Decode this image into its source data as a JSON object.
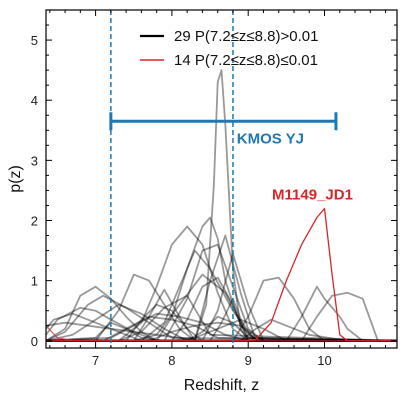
{
  "chart_data": {
    "type": "line",
    "xlabel": "Redshift, z",
    "ylabel": "p(z)",
    "xlim": [
      6.35,
      10.95
    ],
    "ylim": [
      -0.12,
      5.5
    ],
    "xticks": [
      7,
      8,
      9,
      10
    ],
    "yticks": [
      0,
      1,
      2,
      3,
      4,
      5
    ],
    "grid": false,
    "legend_position": "top-right",
    "legend": [
      {
        "label": "29 P(7.2≤z≤8.8)>0.01",
        "color": "#000000"
      },
      {
        "label": "14 P(7.2≤z≤8.8)≤0.01",
        "color": "#d62728"
      }
    ],
    "vlines": [
      {
        "x": 7.2,
        "color": "#1f77b4",
        "style": "dashed"
      },
      {
        "x": 8.8,
        "color": "#1f77b4",
        "style": "dashed"
      }
    ],
    "range_bar": {
      "label": "KMOS YJ",
      "x_start": 7.2,
      "x_end": 10.15,
      "y": 3.65,
      "color": "#1f77b4"
    },
    "annotation": {
      "label": "M1149_JD1",
      "x": 10.0,
      "y": 2.35,
      "color": "#d62728"
    },
    "series": [
      {
        "color": "#d62728",
        "alpha": 1.0,
        "x": [
          6.35,
          8.95,
          9.1,
          9.3,
          9.5,
          9.7,
          9.9,
          10.0,
          10.1,
          10.2,
          10.3,
          10.95
        ],
        "y": [
          0.0,
          0.0,
          0.02,
          0.3,
          1.0,
          1.6,
          2.05,
          2.2,
          1.1,
          0.1,
          0.0,
          0.0
        ]
      },
      {
        "color": "#000000",
        "alpha": 0.4,
        "x": [
          6.35,
          8.3,
          8.45,
          8.55,
          8.6,
          8.65,
          8.7,
          8.8,
          8.9,
          9.0,
          10.95
        ],
        "y": [
          0.0,
          0.0,
          0.6,
          2.6,
          4.3,
          4.5,
          3.6,
          1.2,
          0.2,
          0.0,
          0.0
        ]
      },
      {
        "color": "#000000",
        "alpha": 0.4,
        "x": [
          6.35,
          7.3,
          7.6,
          7.8,
          8.0,
          8.2,
          8.4,
          8.6,
          8.8,
          9.0,
          10.95
        ],
        "y": [
          0.0,
          0.0,
          0.3,
          0.9,
          1.6,
          1.9,
          1.6,
          0.8,
          0.2,
          0.0,
          0.0
        ]
      },
      {
        "color": "#000000",
        "alpha": 0.4,
        "x": [
          6.35,
          7.8,
          8.0,
          8.2,
          8.4,
          8.5,
          8.6,
          8.7,
          8.9,
          9.1,
          10.95
        ],
        "y": [
          0.0,
          0.0,
          0.4,
          1.2,
          1.9,
          2.05,
          1.7,
          1.0,
          0.25,
          0.0,
          0.0
        ]
      },
      {
        "color": "#000000",
        "alpha": 0.4,
        "x": [
          6.35,
          7.6,
          7.9,
          8.1,
          8.3,
          8.5,
          8.8,
          9.1,
          10.95
        ],
        "y": [
          0.0,
          0.0,
          0.3,
          0.9,
          1.5,
          1.2,
          0.5,
          0.0,
          0.0
        ]
      },
      {
        "color": "#000000",
        "alpha": 0.4,
        "x": [
          6.35,
          7.9,
          8.2,
          8.4,
          8.6,
          8.8,
          9.0,
          9.2,
          10.95
        ],
        "y": [
          0.0,
          0.0,
          0.7,
          1.5,
          1.6,
          0.9,
          0.2,
          0.0,
          0.0
        ]
      },
      {
        "color": "#000000",
        "alpha": 0.4,
        "x": [
          6.35,
          8.3,
          8.5,
          8.7,
          8.9,
          9.1,
          10.95
        ],
        "y": [
          0.0,
          0.0,
          1.0,
          1.75,
          0.8,
          0.0,
          0.0
        ]
      },
      {
        "color": "#000000",
        "alpha": 0.4,
        "x": [
          6.35,
          8.8,
          9.0,
          9.2,
          9.4,
          9.6,
          9.8,
          10.0,
          10.95
        ],
        "y": [
          0.0,
          0.0,
          0.4,
          1.0,
          1.05,
          0.7,
          0.2,
          0.0,
          0.0
        ]
      },
      {
        "color": "#000000",
        "alpha": 0.4,
        "x": [
          6.35,
          9.5,
          9.7,
          9.9,
          10.0,
          10.2,
          10.3,
          10.5,
          10.95
        ],
        "y": [
          0.0,
          0.0,
          0.4,
          0.9,
          0.7,
          0.4,
          0.2,
          0.0,
          0.0
        ]
      },
      {
        "color": "#000000",
        "alpha": 0.4,
        "x": [
          6.35,
          9.7,
          9.9,
          10.1,
          10.3,
          10.5,
          10.7,
          10.95
        ],
        "y": [
          0.0,
          0.0,
          0.4,
          0.75,
          0.8,
          0.7,
          0.0,
          0.0
        ]
      },
      {
        "color": "#000000",
        "alpha": 0.4,
        "x": [
          6.35,
          6.6,
          6.8,
          7.0,
          7.2,
          7.4,
          7.6,
          7.8,
          8.0,
          10.95
        ],
        "y": [
          0.0,
          0.2,
          0.75,
          0.9,
          0.7,
          0.4,
          0.15,
          0.0,
          0.0,
          0.0
        ]
      },
      {
        "color": "#000000",
        "alpha": 0.4,
        "x": [
          6.35,
          7.0,
          7.3,
          7.5,
          7.7,
          7.9,
          8.1,
          8.3,
          10.95
        ],
        "y": [
          0.0,
          0.0,
          0.5,
          1.1,
          1.0,
          0.6,
          0.2,
          0.0,
          0.0
        ]
      },
      {
        "color": "#000000",
        "alpha": 0.4,
        "x": [
          6.35,
          6.5,
          6.8,
          7.0,
          7.2,
          7.5,
          7.8,
          8.0,
          10.95
        ],
        "y": [
          0.1,
          0.35,
          0.55,
          0.5,
          0.35,
          0.15,
          0.0,
          0.0,
          0.0
        ]
      },
      {
        "color": "#000000",
        "alpha": 0.4,
        "x": [
          6.35,
          6.6,
          6.9,
          7.2,
          7.5,
          7.8,
          8.1,
          8.4,
          10.95
        ],
        "y": [
          0.25,
          0.3,
          0.25,
          0.2,
          0.15,
          0.1,
          0.05,
          0.0,
          0.0
        ]
      },
      {
        "color": "#000000",
        "alpha": 0.4,
        "x": [
          6.35,
          7.4,
          7.6,
          7.8,
          8.0,
          8.2,
          8.4,
          10.95
        ],
        "y": [
          0.0,
          0.0,
          0.35,
          0.6,
          0.5,
          0.2,
          0.0,
          0.0
        ]
      },
      {
        "color": "#000000",
        "alpha": 0.4,
        "x": [
          6.35,
          8.0,
          8.2,
          8.4,
          8.6,
          8.8,
          9.0,
          10.95
        ],
        "y": [
          0.0,
          0.0,
          0.35,
          0.9,
          1.05,
          0.6,
          0.0,
          0.0
        ]
      },
      {
        "color": "#000000",
        "alpha": 0.4,
        "x": [
          6.35,
          8.4,
          8.6,
          8.8,
          9.0,
          9.2,
          10.95
        ],
        "y": [
          0.0,
          0.0,
          0.5,
          1.45,
          0.6,
          0.0,
          0.0
        ]
      },
      {
        "color": "#000000",
        "alpha": 0.4,
        "x": [
          6.35,
          7.2,
          7.5,
          7.8,
          8.1,
          8.4,
          8.7,
          9.0,
          10.95
        ],
        "y": [
          0.0,
          0.05,
          0.25,
          0.45,
          0.4,
          0.3,
          0.1,
          0.0,
          0.0
        ]
      },
      {
        "color": "#000000",
        "alpha": 0.4,
        "x": [
          6.35,
          6.7,
          7.0,
          7.3,
          7.6,
          7.9,
          8.2,
          10.95
        ],
        "y": [
          0.0,
          0.1,
          0.35,
          0.6,
          0.45,
          0.2,
          0.0,
          0.0
        ]
      },
      {
        "color": "#000000",
        "alpha": 0.4,
        "x": [
          6.35,
          7.7,
          8.0,
          8.3,
          8.6,
          8.9,
          9.2,
          10.95
        ],
        "y": [
          0.0,
          0.0,
          0.15,
          0.25,
          0.3,
          0.25,
          0.0,
          0.0
        ]
      },
      {
        "color": "#000000",
        "alpha": 0.4,
        "x": [
          6.35,
          8.9,
          9.1,
          9.3,
          9.5,
          9.8,
          10.2,
          10.95
        ],
        "y": [
          0.0,
          0.0,
          0.2,
          0.35,
          0.25,
          0.1,
          0.02,
          0.0
        ]
      },
      {
        "color": "#000000",
        "alpha": 0.4,
        "x": [
          6.35,
          6.6,
          6.9,
          7.1,
          7.4,
          7.7,
          8.0,
          10.95
        ],
        "y": [
          0.0,
          0.15,
          0.6,
          0.75,
          0.55,
          0.3,
          0.05,
          0.0
        ]
      },
      {
        "color": "#000000",
        "alpha": 0.4,
        "x": [
          6.35,
          7.5,
          7.8,
          8.1,
          8.4,
          8.7,
          9.0,
          10.95
        ],
        "y": [
          0.0,
          0.0,
          0.1,
          0.6,
          1.1,
          0.8,
          0.05,
          0.0
        ]
      },
      {
        "color": "#000000",
        "alpha": 0.4,
        "x": [
          6.35,
          8.2,
          8.4,
          8.6,
          8.8,
          9.0,
          10.95
        ],
        "y": [
          0.0,
          0.0,
          0.15,
          0.4,
          0.3,
          0.05,
          0.0
        ]
      },
      {
        "color": "#000000",
        "alpha": 0.4,
        "x": [
          6.35,
          6.45,
          6.7,
          7.0,
          7.3,
          7.6,
          10.95
        ],
        "y": [
          0.2,
          0.35,
          0.45,
          0.3,
          0.15,
          0.0,
          0.0
        ]
      },
      {
        "color": "#000000",
        "alpha": 0.4,
        "x": [
          6.35,
          7.1,
          7.4,
          7.7,
          8.0,
          8.3,
          8.6,
          10.95
        ],
        "y": [
          0.0,
          0.0,
          0.2,
          0.4,
          0.35,
          0.25,
          0.05,
          0.0
        ]
      },
      {
        "color": "#000000",
        "alpha": 0.4,
        "x": [
          6.35,
          8.0,
          8.3,
          8.6,
          8.9,
          9.2,
          9.5,
          10.95
        ],
        "y": [
          0.0,
          0.0,
          0.05,
          0.2,
          0.35,
          0.2,
          0.0,
          0.0
        ]
      },
      {
        "color": "#000000",
        "alpha": 0.4,
        "x": [
          6.35,
          7.3,
          7.6,
          7.9,
          8.2,
          8.5,
          10.95
        ],
        "y": [
          0.0,
          0.0,
          0.15,
          0.55,
          0.75,
          0.1,
          0.0
        ]
      },
      {
        "color": "#000000",
        "alpha": 0.4,
        "x": [
          6.35,
          7.0,
          7.2,
          7.4,
          7.6,
          7.9,
          8.2,
          10.95
        ],
        "y": [
          0.0,
          0.05,
          0.3,
          0.2,
          0.05,
          0.0,
          0.0,
          0.0
        ]
      },
      {
        "color": "#000000",
        "alpha": 0.4,
        "x": [
          6.35,
          8.5,
          8.65,
          8.8,
          8.95,
          9.1,
          10.95
        ],
        "y": [
          0.0,
          0.0,
          0.3,
          0.7,
          0.2,
          0.0,
          0.0
        ]
      },
      {
        "color": "#000000",
        "alpha": 0.4,
        "x": [
          6.35,
          7.5,
          7.7,
          7.9,
          8.1,
          8.3,
          10.95
        ],
        "y": [
          0.0,
          0.0,
          0.4,
          0.85,
          0.4,
          0.0,
          0.0
        ]
      },
      {
        "color": "#d62728",
        "alpha": 0.7,
        "x": [
          6.35,
          6.5,
          6.7,
          10.95
        ],
        "y": [
          0.25,
          0.05,
          0.0,
          0.0
        ]
      }
    ]
  }
}
